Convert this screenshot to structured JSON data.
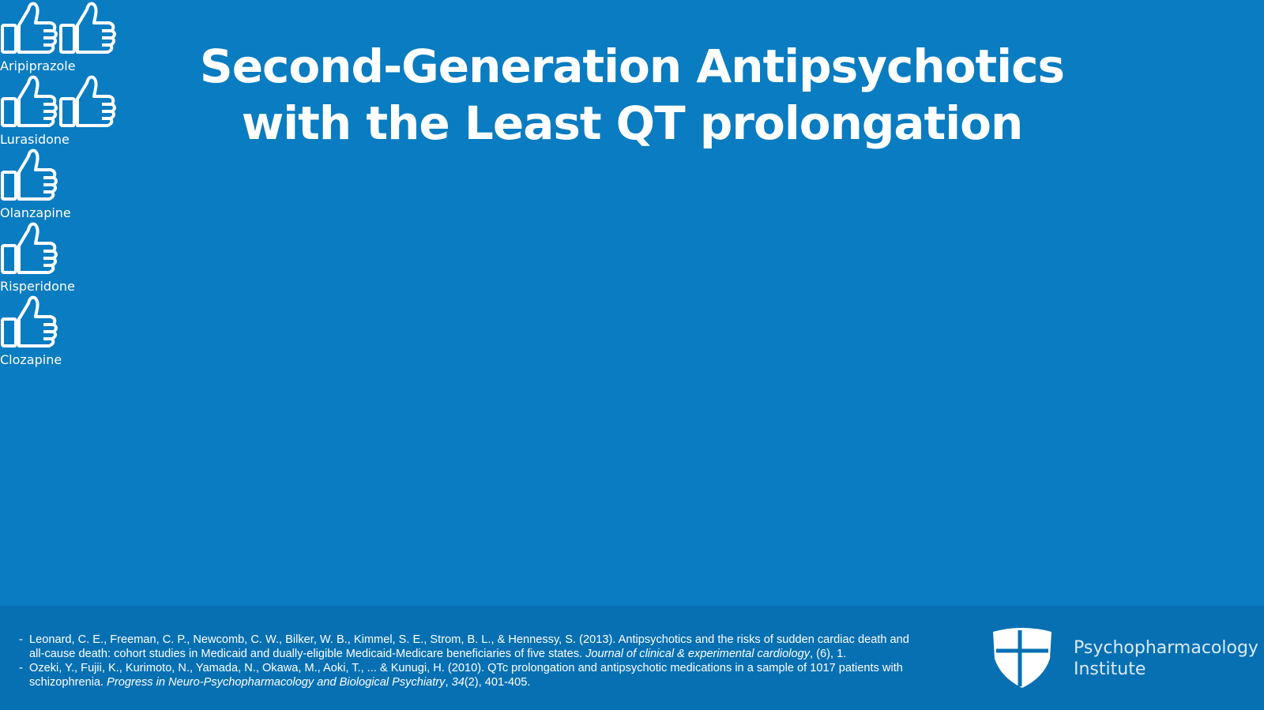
{
  "title": [
    "Second-Generation Antipsychotics",
    "with the Least QT prolongation"
  ],
  "rows": [
    {
      "label": "Aripiprazole",
      "thumbs": 2
    },
    {
      "label": "Lurasidone",
      "thumbs": 2
    },
    {
      "label": "Olanzapine",
      "thumbs": 1
    },
    {
      "label": "Risperidone",
      "thumbs": 1
    },
    {
      "label": "Clozapine",
      "thumbs": 1
    }
  ],
  "references": [
    [
      {
        "text": "Leonard, C. E., Freeman, C. P., Newcomb, C. W., Bilker, W. B., Kimmel, S. E., Strom, B. L., & Hennessy, S. (2013). Antipsychotics and the risks of sudden cardiac death and all-cause death: cohort studies in Medicaid and dually-eligible Medicaid-Medicare beneficiaries of five states. ",
        "italic": false
      },
      {
        "text": "Journal of clinical & experimental cardiology",
        "italic": true
      },
      {
        "text": ", (6), 1.",
        "italic": false
      }
    ],
    [
      {
        "text": "Ozeki, Y., Fujii, K., Kurimoto, N., Yamada, N., Okawa, M., Aoki, T., ... & Kunugi, H. (2010). QTc prolongation and antipsychotic medications in a sample of 1017 patients with schizophrenia. ",
        "italic": false
      },
      {
        "text": "Progress in Neuro-Psychopharmacology and Biological Psychiatry",
        "italic": true
      },
      {
        "text": ", ",
        "italic": false
      },
      {
        "text": "34",
        "italic": true
      },
      {
        "text": "(2), 401-405.",
        "italic": false
      }
    ]
  ],
  "logo": [
    "Psychopharmacology",
    "Institute"
  ]
}
